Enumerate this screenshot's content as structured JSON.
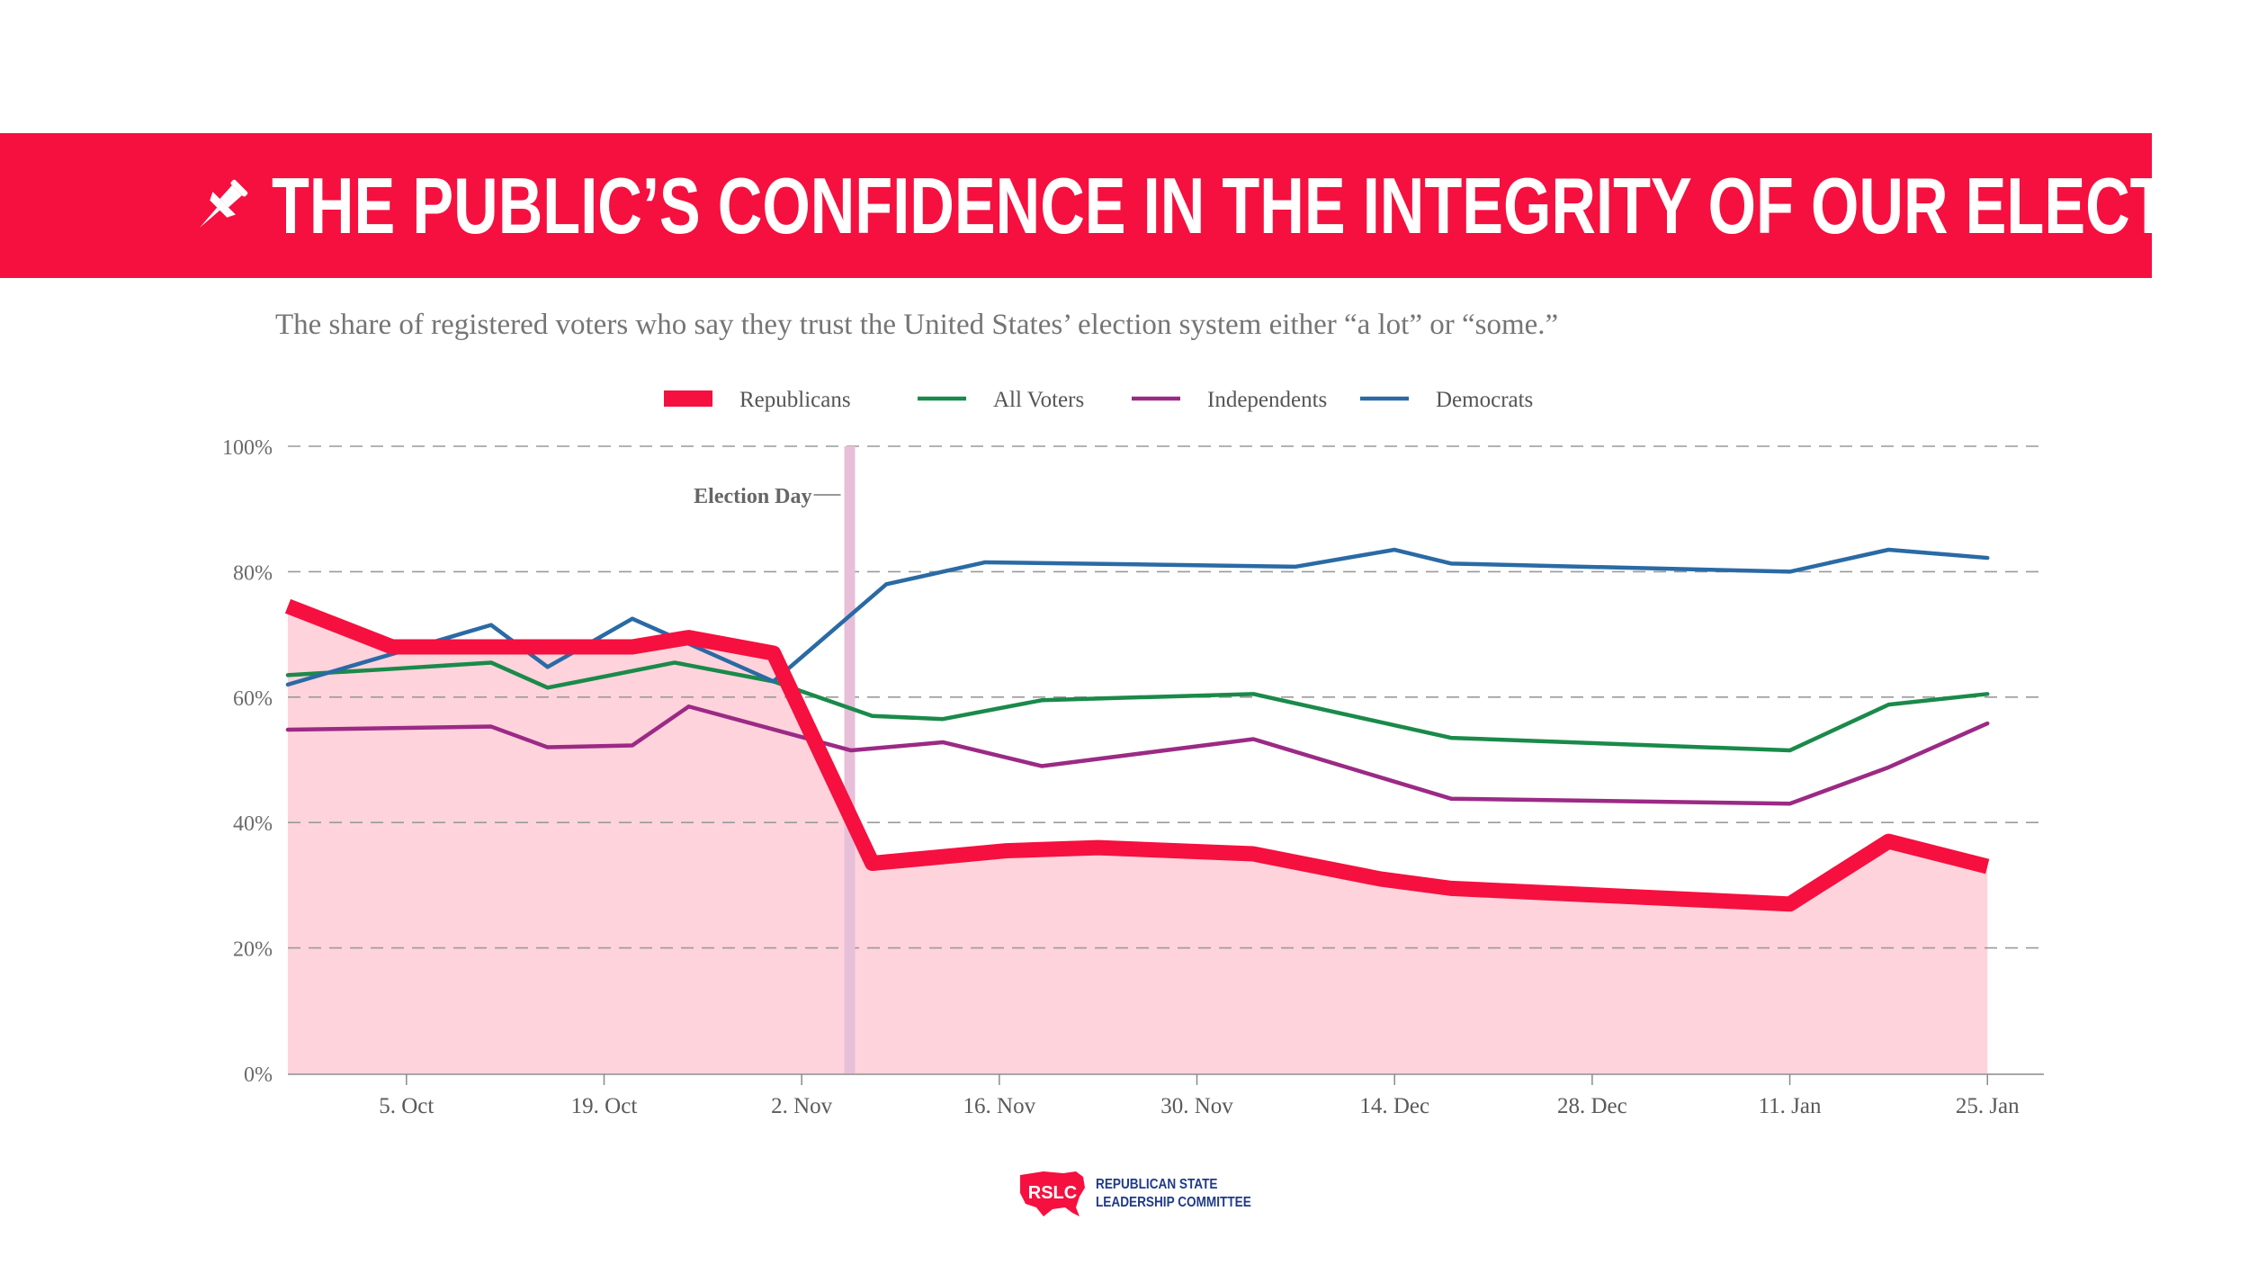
{
  "header": {
    "title": "THE PUBLIC’S CONFIDENCE IN THE INTEGRITY OF OUR ELECTIONS",
    "subtitle": "The share of registered voters who say they trust the United States’ election system either “a lot” or “some.”"
  },
  "logo": {
    "abbr": "RSLC",
    "line1": "REPUBLICAN STATE",
    "line2": "LEADERSHIP COMMITTEE"
  },
  "colors": {
    "banner": "#f5103f",
    "republicans": "#f5103f",
    "republicans_area": "#ffd3dc",
    "all_voters": "#1a8a4a",
    "independents": "#9b2a85",
    "democrats": "#2a6aa5",
    "election_band": "#e7bfd8"
  },
  "chart_data": {
    "type": "line",
    "xlabel": "",
    "ylabel": "",
    "x_range": [
      -6.4,
      118
    ],
    "ylim": [
      0,
      100
    ],
    "y_ticks": [
      0,
      20,
      40,
      60,
      80,
      100
    ],
    "y_tick_labels": [
      "0%",
      "20%",
      "40%",
      "60%",
      "80%",
      "100%"
    ],
    "x_ticks": [
      {
        "day": 2,
        "label": "5. Oct"
      },
      {
        "day": 16,
        "label": "19. Oct"
      },
      {
        "day": 30,
        "label": "2. Nov"
      },
      {
        "day": 44,
        "label": "16. Nov"
      },
      {
        "day": 58,
        "label": "30. Nov"
      },
      {
        "day": 72,
        "label": "14. Dec"
      },
      {
        "day": 86,
        "label": "28. Dec"
      },
      {
        "day": 100,
        "label": "11. Jan"
      },
      {
        "day": 114,
        "label": "25. Jan"
      }
    ],
    "annotation": {
      "label": "Election Day",
      "day": 33.4
    },
    "legend": [
      "Republicans",
      "All Voters",
      "Independents",
      "Democrats"
    ],
    "series": [
      {
        "name": "Republicans",
        "key": "republicans",
        "area": true,
        "points": [
          [
            -6.4,
            74.5
          ],
          [
            1,
            68
          ],
          [
            8,
            68
          ],
          [
            15,
            68
          ],
          [
            18,
            68
          ],
          [
            22,
            69.5
          ],
          [
            28,
            67
          ],
          [
            35,
            33.5
          ],
          [
            44.5,
            35.5
          ],
          [
            51,
            36
          ],
          [
            62,
            35
          ],
          [
            71,
            31
          ],
          [
            76,
            29.5
          ],
          [
            100,
            27
          ],
          [
            107,
            37
          ],
          [
            114,
            33
          ]
        ]
      },
      {
        "name": "All Voters",
        "key": "all_voters",
        "points": [
          [
            -6.4,
            63.5
          ],
          [
            1,
            64.5
          ],
          [
            8,
            65.5
          ],
          [
            12,
            61.5
          ],
          [
            21,
            65.5
          ],
          [
            28,
            62.5
          ],
          [
            35,
            57
          ],
          [
            40,
            56.5
          ],
          [
            47,
            59.5
          ],
          [
            62,
            60.5
          ],
          [
            76,
            53.5
          ],
          [
            100,
            51.5
          ],
          [
            107,
            58.8
          ],
          [
            114,
            60.5
          ]
        ]
      },
      {
        "name": "Independents",
        "key": "independents",
        "points": [
          [
            -6.4,
            54.8
          ],
          [
            8,
            55.3
          ],
          [
            12,
            52
          ],
          [
            18,
            52.3
          ],
          [
            22,
            58.5
          ],
          [
            33.5,
            51.5
          ],
          [
            40,
            52.8
          ],
          [
            47,
            49
          ],
          [
            62,
            53.3
          ],
          [
            76,
            43.8
          ],
          [
            100,
            43
          ],
          [
            107,
            48.8
          ],
          [
            114,
            55.8
          ]
        ]
      },
      {
        "name": "Democrats",
        "key": "democrats",
        "points": [
          [
            -6.4,
            62
          ],
          [
            8,
            71.5
          ],
          [
            12,
            64.8
          ],
          [
            18,
            72.5
          ],
          [
            28,
            62.5
          ],
          [
            36,
            78
          ],
          [
            43,
            81.5
          ],
          [
            65,
            80.8
          ],
          [
            72,
            83.5
          ],
          [
            76,
            81.3
          ],
          [
            100,
            80
          ],
          [
            107,
            83.5
          ],
          [
            114,
            82.2
          ]
        ]
      }
    ]
  }
}
